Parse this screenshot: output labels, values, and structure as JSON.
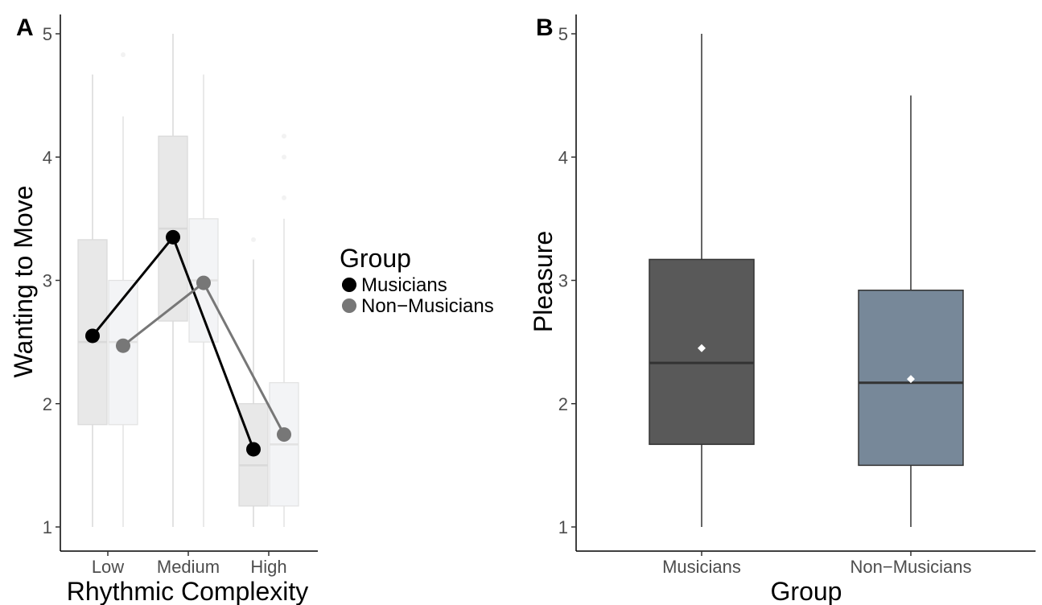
{
  "chart_data": [
    {
      "panel": "A",
      "type": "box+line",
      "xlabel": "Rhythmic Complexity",
      "ylabel": "Wanting to Move",
      "categories": [
        "Low",
        "Medium",
        "High"
      ],
      "ylim": [
        1,
        5
      ],
      "yticks": [
        "1",
        "2",
        "3",
        "4",
        "5"
      ],
      "legend": {
        "title": "Group",
        "placement": "right",
        "entries": [
          "Musicians",
          "Non−Musicians"
        ]
      },
      "series": [
        {
          "name": "Musicians",
          "color": "#000000",
          "box_fill": "#e8e8e8",
          "box_stroke": "#d9d9d9",
          "means": [
            2.55,
            3.35,
            1.63
          ],
          "boxes": [
            {
              "min": 1.0,
              "q1": 1.83,
              "median": 2.5,
              "q3": 3.33,
              "max": 4.67,
              "outliers": []
            },
            {
              "min": 1.0,
              "q1": 2.67,
              "median": 3.42,
              "q3": 4.17,
              "max": 5.0,
              "outliers": []
            },
            {
              "min": 1.0,
              "q1": 1.17,
              "median": 1.5,
              "q3": 2.0,
              "max": 3.17,
              "outliers": [
                3.33
              ]
            }
          ]
        },
        {
          "name": "Non−Musicians",
          "color": "#777777",
          "box_fill": "#f3f4f6",
          "box_stroke": "#e2e2e2",
          "means": [
            2.47,
            2.98,
            1.75
          ],
          "boxes": [
            {
              "min": 1.0,
              "q1": 1.83,
              "median": 2.5,
              "q3": 3.0,
              "max": 4.33,
              "outliers": [
                4.83
              ]
            },
            {
              "min": 1.0,
              "q1": 2.5,
              "median": 3.0,
              "q3": 3.5,
              "max": 4.67,
              "outliers": []
            },
            {
              "min": 1.0,
              "q1": 1.17,
              "median": 1.67,
              "q3": 2.17,
              "max": 3.5,
              "outliers": [
                3.67,
                4.0,
                4.17
              ]
            }
          ]
        }
      ]
    },
    {
      "panel": "B",
      "type": "box",
      "xlabel": "Group",
      "ylabel": "Pleasure",
      "categories": [
        "Musicians",
        "Non−Musicians"
      ],
      "ylim": [
        1,
        5
      ],
      "yticks": [
        "1",
        "2",
        "3",
        "4",
        "5"
      ],
      "boxes": [
        {
          "min": 1.0,
          "q1": 1.67,
          "median": 2.33,
          "q3": 3.17,
          "max": 5.0,
          "mean": 2.45,
          "fill": "#595959"
        },
        {
          "min": 1.0,
          "q1": 1.5,
          "median": 2.17,
          "q3": 2.92,
          "max": 4.5,
          "mean": 2.2,
          "fill": "#778899"
        }
      ]
    }
  ]
}
